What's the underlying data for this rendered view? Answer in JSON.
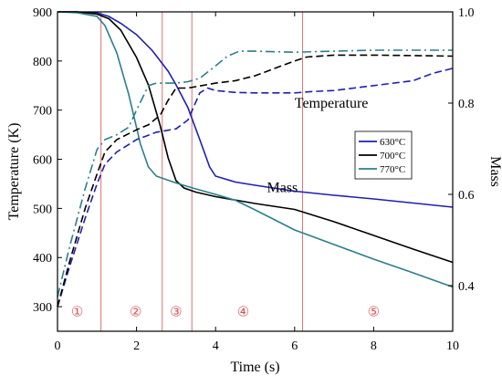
{
  "chart_data": {
    "type": "line",
    "xlabel": "Time (s)",
    "ylabel_left": "Temperature (K)",
    "ylabel_right": "Mass",
    "xlim": [
      0,
      10
    ],
    "ylim_left": [
      250,
      900
    ],
    "ylim_right": [
      0.3,
      1.0
    ],
    "x_ticks": [
      0,
      2,
      4,
      6,
      8,
      10
    ],
    "y_left_ticks": [
      300,
      400,
      500,
      600,
      700,
      800,
      900
    ],
    "y_right_ticks": [
      0.4,
      0.6,
      0.8,
      1.0
    ],
    "x_tick_labels": [
      "0",
      "2",
      "4",
      "6",
      "8",
      "10"
    ],
    "y_left_tick_labels": [
      "300",
      "400",
      "500",
      "600",
      "700",
      "800",
      "900"
    ],
    "y_right_tick_labels": [
      "0.4",
      "0.6",
      "0.8",
      "1.0"
    ],
    "grid": false,
    "legend_position": "right-center",
    "legend": [
      {
        "label": "630°C",
        "color": "#1f1fb4"
      },
      {
        "label": "700°C",
        "color": "#000000"
      },
      {
        "label": "770°C",
        "color": "#2a7f8a"
      }
    ],
    "annotations": [
      {
        "text": "Temperature",
        "x": 6.0,
        "y": 705,
        "axis": "left"
      },
      {
        "text": "Mass",
        "x": 5.3,
        "y": 0.605,
        "axis": "right"
      }
    ],
    "vlines": [
      1.1,
      2.65,
      3.4,
      6.2
    ],
    "vline_color": "#e07070",
    "regions": [
      {
        "label": "①",
        "x": 0.5
      },
      {
        "label": "②",
        "x": 1.98
      },
      {
        "label": "③",
        "x": 3.0
      },
      {
        "label": "④",
        "x": 4.7
      },
      {
        "label": "⑤",
        "x": 8.0
      }
    ],
    "region_label_y": 290,
    "series": [
      {
        "name": "630°C",
        "kind": "mass",
        "axis": "right",
        "color": "#1f1fb4",
        "dash": "solid",
        "x": [
          0,
          0.5,
          1.0,
          1.3,
          1.6,
          2.0,
          2.4,
          2.8,
          3.0,
          3.3,
          3.6,
          3.85,
          4.0,
          4.5,
          5.0,
          6.0,
          7.0,
          8.0,
          9.0,
          10.0
        ],
        "y": [
          1.0,
          1.0,
          0.998,
          0.99,
          0.975,
          0.95,
          0.915,
          0.87,
          0.84,
          0.79,
          0.72,
          0.66,
          0.64,
          0.627,
          0.62,
          0.607,
          0.598,
          0.59,
          0.581,
          0.572
        ]
      },
      {
        "name": "700°C",
        "kind": "mass",
        "axis": "right",
        "color": "#000000",
        "dash": "solid",
        "x": [
          0,
          0.5,
          1.0,
          1.3,
          1.6,
          2.0,
          2.3,
          2.6,
          2.8,
          3.0,
          3.2,
          3.5,
          4.0,
          5.0,
          6.0,
          7.0,
          8.0,
          9.0,
          10.0
        ],
        "y": [
          1.0,
          1.0,
          0.995,
          0.985,
          0.96,
          0.9,
          0.84,
          0.75,
          0.68,
          0.63,
          0.614,
          0.605,
          0.595,
          0.58,
          0.567,
          0.54,
          0.51,
          0.48,
          0.451
        ]
      },
      {
        "name": "770°C",
        "kind": "mass",
        "axis": "right",
        "color": "#2a7f8a",
        "dash": "solid",
        "x": [
          0,
          0.5,
          1.0,
          1.2,
          1.5,
          1.8,
          2.1,
          2.3,
          2.5,
          3.0,
          3.5,
          4.0,
          4.5,
          5.0,
          6.0,
          7.0,
          8.0,
          9.0,
          10.0
        ],
        "y": [
          1.0,
          0.998,
          0.99,
          0.97,
          0.91,
          0.82,
          0.71,
          0.66,
          0.64,
          0.625,
          0.612,
          0.6,
          0.587,
          0.566,
          0.522,
          0.49,
          0.458,
          0.428,
          0.397
        ]
      },
      {
        "name": "630°C",
        "kind": "temperature",
        "axis": "left",
        "color": "#1f1fb4",
        "dash": "8,4",
        "x": [
          0,
          0.3,
          0.7,
          1.0,
          1.2,
          1.5,
          2.0,
          2.5,
          3.0,
          3.3,
          3.6,
          3.8,
          4.0,
          4.5,
          5.0,
          6.0,
          6.5,
          7.0,
          7.5,
          8.0,
          9.0,
          9.5,
          10.0
        ],
        "y": [
          300,
          380,
          480,
          550,
          590,
          615,
          640,
          655,
          662,
          680,
          735,
          745,
          740,
          736,
          735,
          735,
          738,
          740,
          745,
          750,
          760,
          775,
          785
        ]
      },
      {
        "name": "700°C",
        "kind": "temperature",
        "axis": "left",
        "color": "#000000",
        "dash": "8,4",
        "x": [
          0,
          0.3,
          0.7,
          1.0,
          1.2,
          1.5,
          2.0,
          2.3,
          2.6,
          2.8,
          3.0,
          3.3,
          4.0,
          4.5,
          5.0,
          5.5,
          6.0,
          6.3,
          7.0,
          8.0,
          9.0,
          10.0
        ],
        "y": [
          300,
          390,
          500,
          570,
          615,
          640,
          660,
          670,
          690,
          720,
          745,
          745,
          755,
          760,
          770,
          785,
          800,
          808,
          812,
          812,
          811,
          810
        ]
      },
      {
        "name": "770°C",
        "kind": "temperature",
        "axis": "left",
        "color": "#2a7f8a",
        "dash": "10,4,2,4",
        "x": [
          0,
          0.3,
          0.7,
          1.0,
          1.2,
          1.5,
          1.8,
          2.0,
          2.3,
          2.5,
          3.0,
          3.3,
          3.6,
          4.0,
          4.3,
          4.6,
          5.0,
          6.0,
          7.0,
          8.0,
          9.0,
          10.0
        ],
        "y": [
          320,
          420,
          540,
          620,
          640,
          650,
          665,
          700,
          750,
          755,
          755,
          758,
          765,
          790,
          810,
          820,
          820,
          818,
          820,
          822,
          822,
          822
        ]
      }
    ]
  }
}
